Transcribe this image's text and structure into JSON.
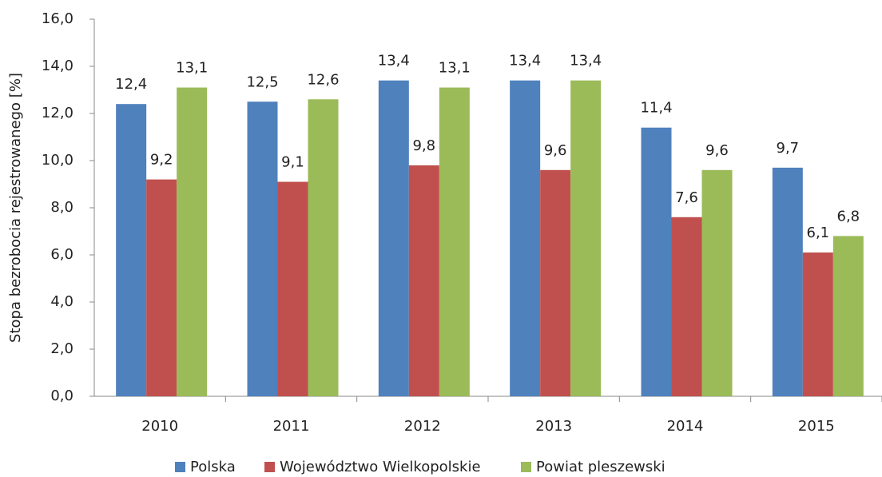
{
  "chart_data": {
    "type": "bar",
    "y_label": "Stopa bezrobocia rejestrowanego [%]",
    "categories": [
      "2010",
      "2011",
      "2012",
      "2013",
      "2014",
      "2015"
    ],
    "series": [
      {
        "name": "Polska",
        "color": "#4f81bd",
        "values": [
          12.4,
          12.5,
          13.4,
          13.4,
          11.4,
          9.7
        ],
        "value_labels": [
          "12,4",
          "12,5",
          "13,4",
          "13,4",
          "11,4",
          "9,7"
        ]
      },
      {
        "name": "Województwo Wielkopolskie",
        "color": "#c0504d",
        "values": [
          9.2,
          9.1,
          9.8,
          9.6,
          7.6,
          6.1
        ],
        "value_labels": [
          "9,2",
          "9,1",
          "9,8",
          "9,6",
          "7,6",
          "6,1"
        ]
      },
      {
        "name": "Powiat pleszewski",
        "color": "#9bbb59",
        "values": [
          13.1,
          12.6,
          13.1,
          13.4,
          9.6,
          6.8
        ],
        "value_labels": [
          "13,1",
          "12,6",
          "13,1",
          "13,4",
          "9,6",
          "6,8"
        ]
      }
    ],
    "ylim": [
      0,
      16
    ],
    "yticks": [
      {
        "value": 0,
        "label": "0,0"
      },
      {
        "value": 2,
        "label": "2,0"
      },
      {
        "value": 4,
        "label": "4,0"
      },
      {
        "value": 6,
        "label": "6,0"
      },
      {
        "value": 8,
        "label": "8,0"
      },
      {
        "value": 10,
        "label": "10,0"
      },
      {
        "value": 12,
        "label": "12,0"
      },
      {
        "value": 14,
        "label": "14,0"
      },
      {
        "value": 16,
        "label": "16,0"
      }
    ],
    "grid": false,
    "legend": "bottom"
  }
}
